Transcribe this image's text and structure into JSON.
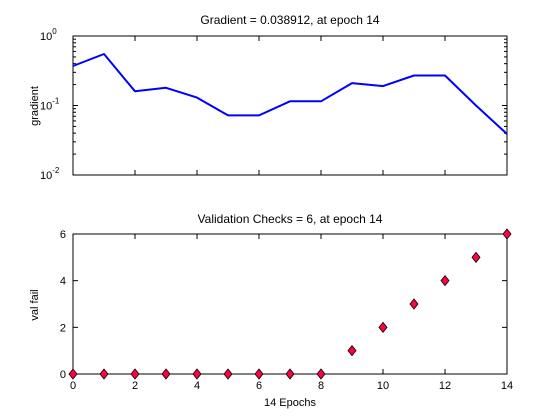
{
  "figure": {
    "background": "#ffffff",
    "axes_color": "#000000"
  },
  "chart_data": [
    {
      "type": "line",
      "title": "Gradient = 0.038912, at epoch 14",
      "xlabel": "",
      "ylabel": "gradient",
      "y_scale": "log",
      "xlim": [
        0,
        14
      ],
      "ylim": [
        0.01,
        1
      ],
      "x_tick_labels_shown": false,
      "y_ticks": [
        {
          "value": 0.01,
          "base": "10",
          "exp": "-2"
        },
        {
          "value": 0.1,
          "base": "10",
          "exp": "-1"
        },
        {
          "value": 1,
          "base": "10",
          "exp": "0"
        }
      ],
      "grid": false,
      "series": [
        {
          "color": "#0000ff",
          "x": [
            0,
            1,
            2,
            3,
            4,
            5,
            6,
            7,
            8,
            9,
            10,
            11,
            12,
            13,
            14
          ],
          "values": [
            0.37,
            0.55,
            0.16,
            0.18,
            0.13,
            0.072,
            0.072,
            0.115,
            0.115,
            0.21,
            0.19,
            0.27,
            0.27,
            0.1,
            0.038912
          ]
        }
      ]
    },
    {
      "type": "scatter",
      "title": "Validation Checks = 6, at epoch 14",
      "xlabel": "14 Epochs",
      "ylabel": "val fail",
      "xlim": [
        0,
        14
      ],
      "ylim": [
        0,
        6
      ],
      "x_ticks": [
        0,
        2,
        4,
        6,
        8,
        10,
        12,
        14
      ],
      "y_ticks": [
        0,
        2,
        4,
        6
      ],
      "grid": false,
      "marker": "diamond",
      "series": [
        {
          "color": "#ff0040",
          "x": [
            0,
            1,
            2,
            3,
            4,
            5,
            6,
            7,
            8,
            9,
            10,
            11,
            12,
            13,
            14
          ],
          "values": [
            0,
            0,
            0,
            0,
            0,
            0,
            0,
            0,
            0,
            1,
            2,
            3,
            4,
            5,
            6
          ]
        }
      ]
    }
  ]
}
